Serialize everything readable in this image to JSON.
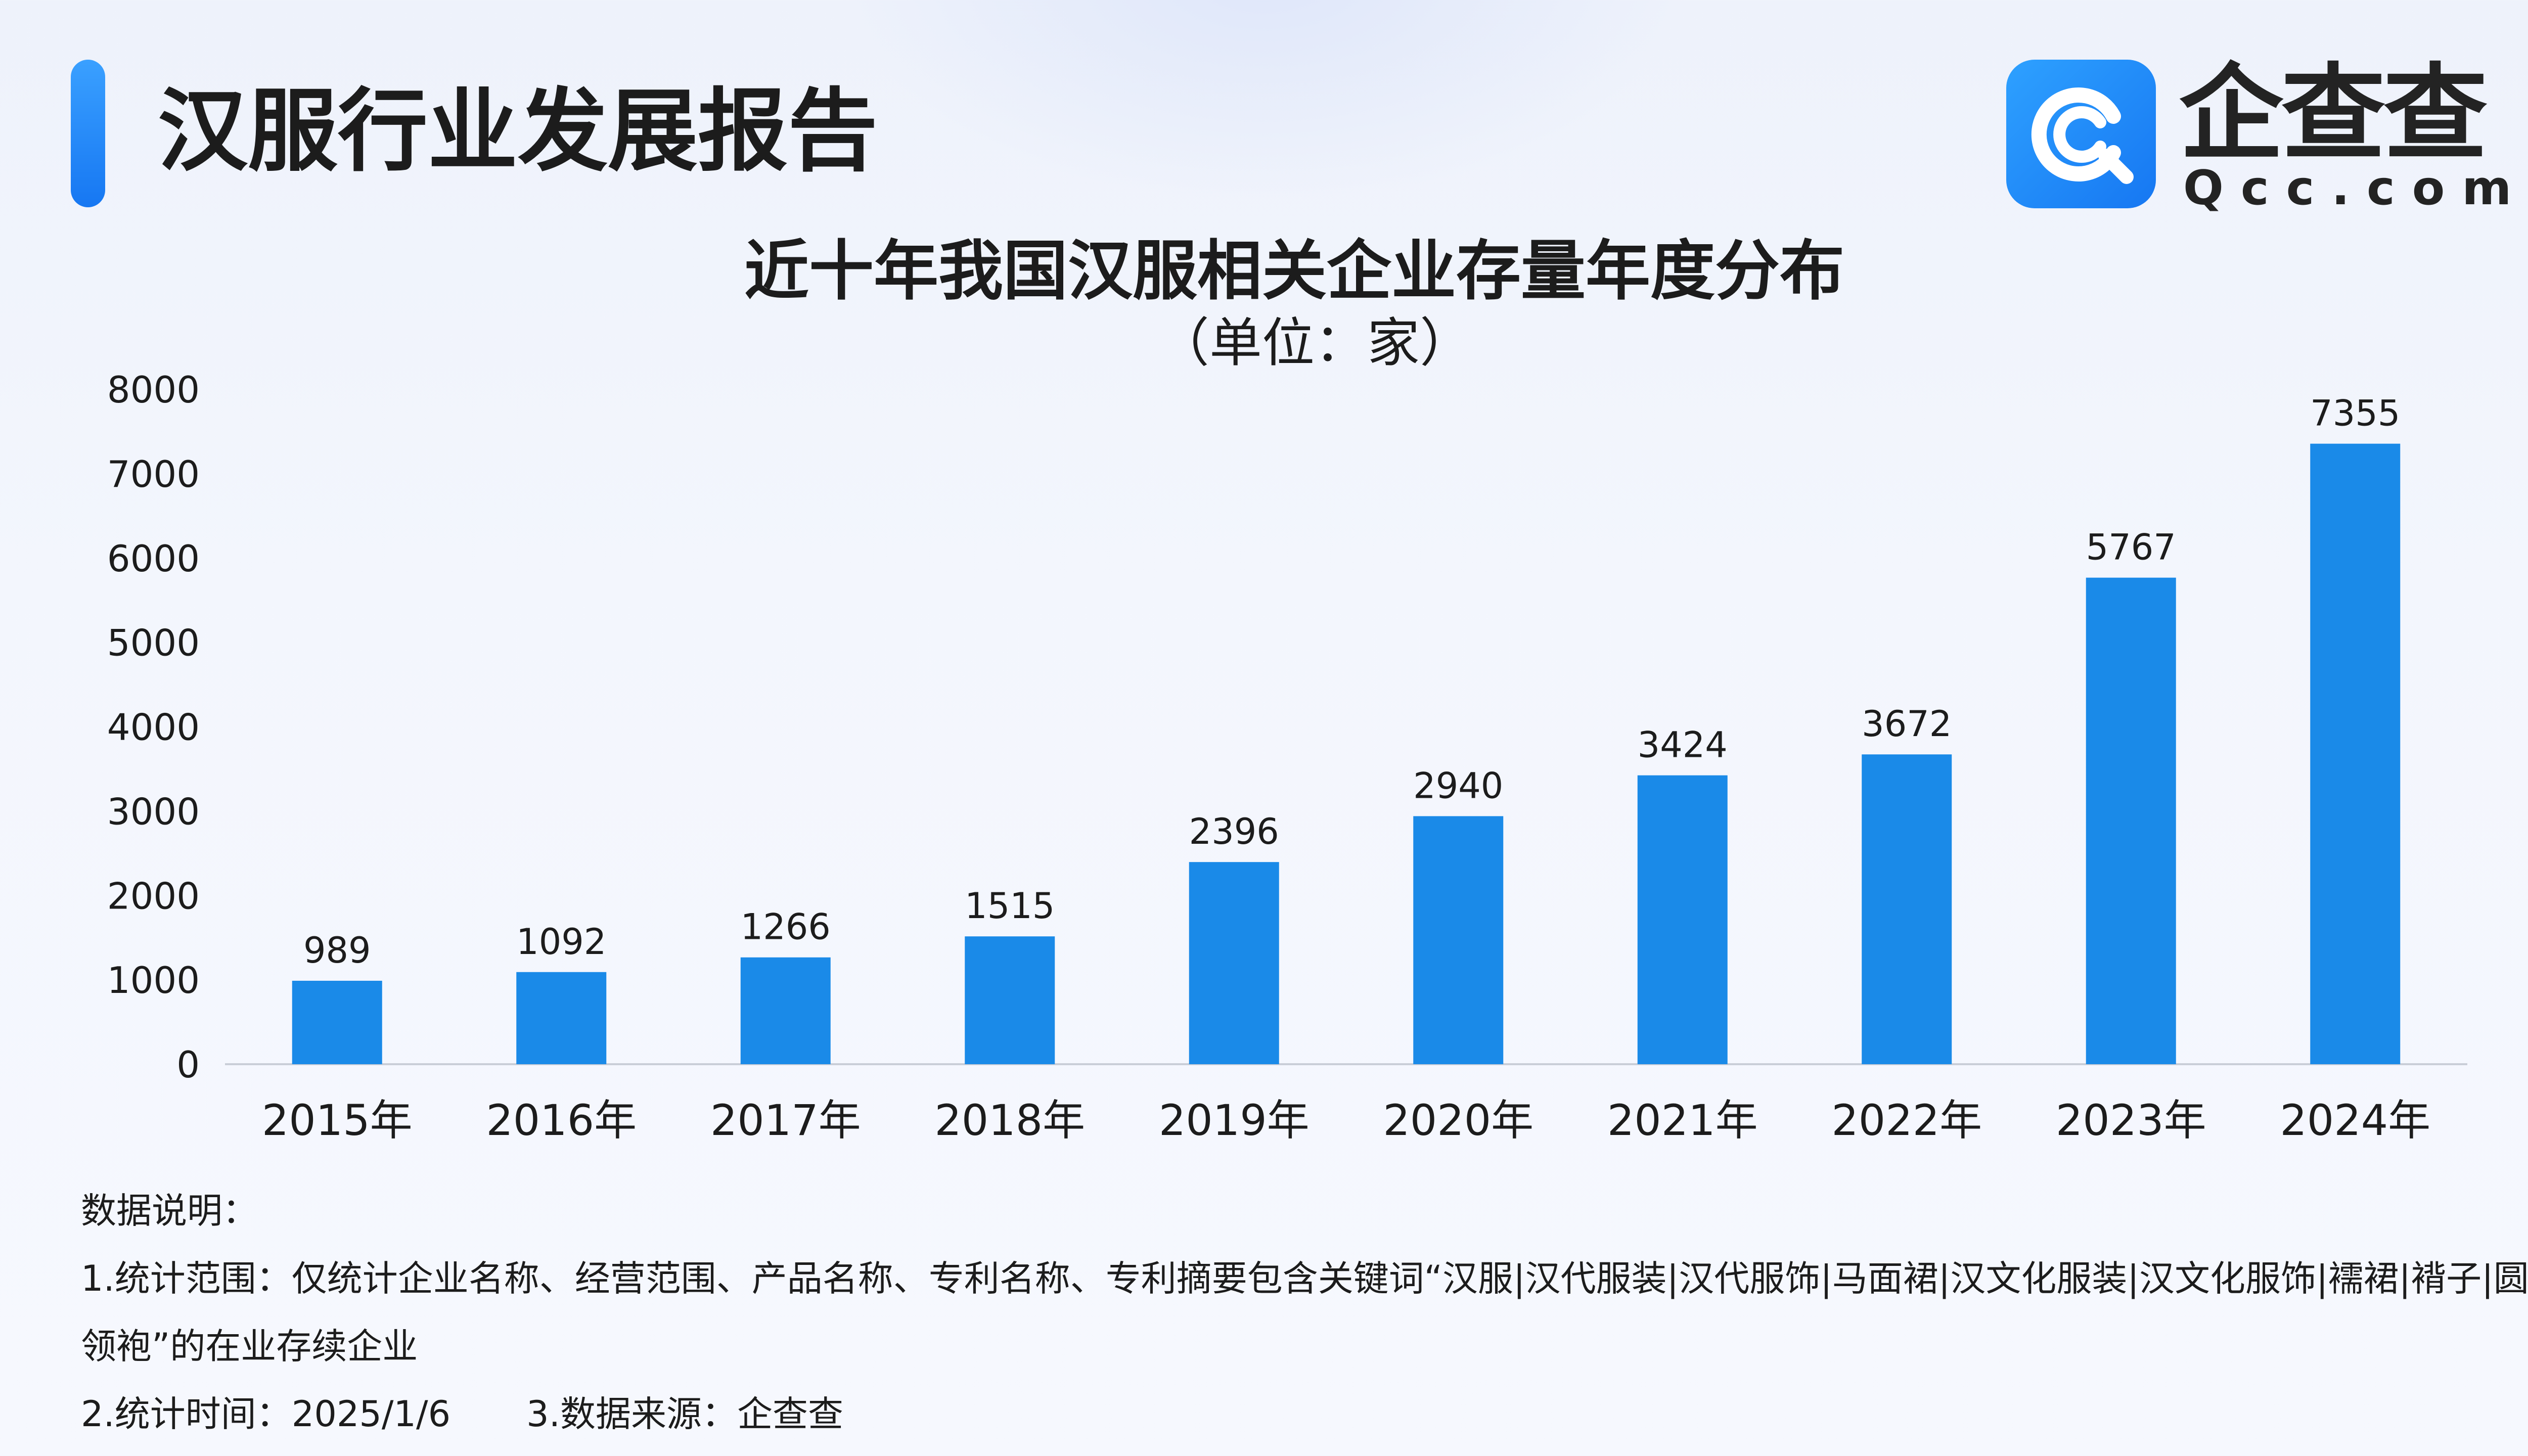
{
  "header": {
    "title": "汉服行业发展报告"
  },
  "logo": {
    "name": "企查查",
    "domain": "Qcc.com",
    "icon": "qcc-logo-icon"
  },
  "colors": {
    "bar": "#1a8ae8",
    "accent": "#1677f2",
    "axis": "#c9ced8"
  },
  "chart_data": {
    "type": "bar",
    "title": "近十年我国汉服相关企业存量年度分布",
    "subtitle": "（单位：家）",
    "categories": [
      "2015年",
      "2016年",
      "2017年",
      "2018年",
      "2019年",
      "2020年",
      "2021年",
      "2022年",
      "2023年",
      "2024年"
    ],
    "values": [
      989,
      1092,
      1266,
      1515,
      2396,
      2940,
      3424,
      3672,
      5767,
      7355
    ],
    "data_labels": [
      "989",
      "1092",
      "1266",
      "1515",
      "2396",
      "2940",
      "3424",
      "3672",
      "5767",
      "7355"
    ],
    "yticks": [
      "0",
      "1000",
      "2000",
      "3000",
      "4000",
      "5000",
      "6000",
      "7000",
      "8000"
    ],
    "ylim": [
      0,
      8000
    ],
    "grid": false,
    "legend": "none"
  },
  "notes": {
    "heading": "数据说明：",
    "scope": "1.统计范围：仅统计企业名称、经营范围、产品名称、专利名称、专利摘要包含关键词“汉服|汉代服装|汉代服饰|马面裙|汉文化服装|汉文化服饰|襦裙|褙子|圆领袍”的在业存续企业",
    "time": "2.统计时间：2025/1/6",
    "source": "3.数据来源：企查查"
  }
}
